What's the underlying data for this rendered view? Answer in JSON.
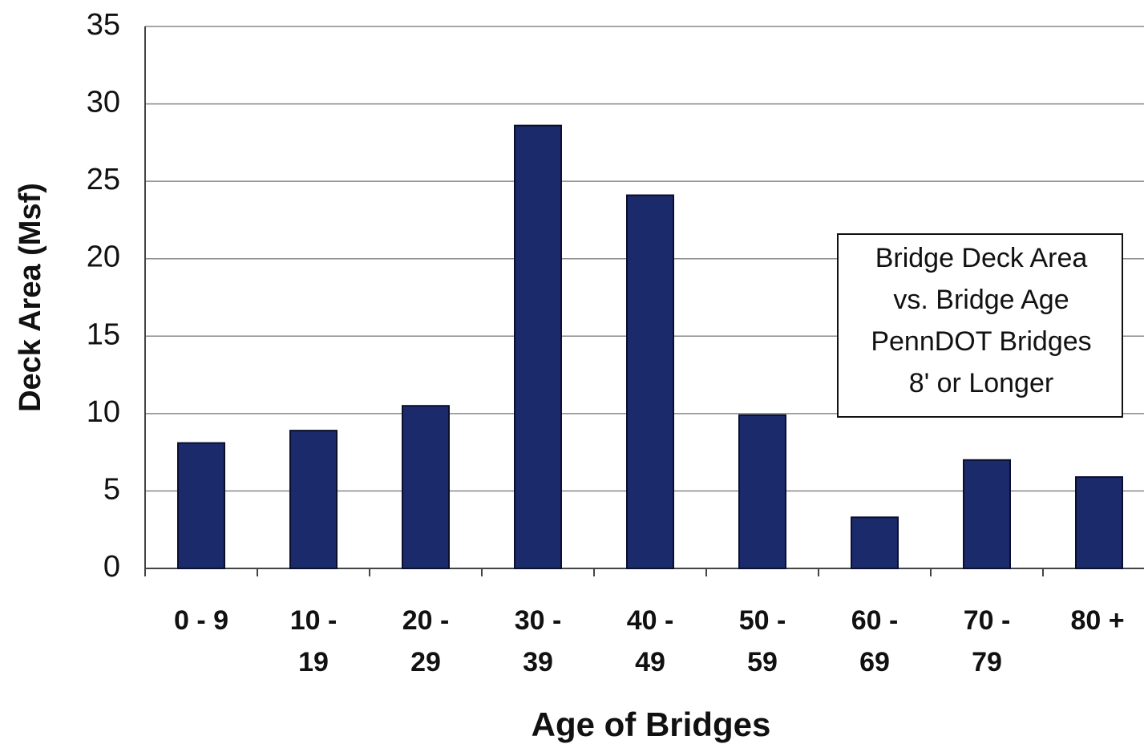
{
  "chart_data": {
    "type": "bar",
    "categories": [
      "0 - 9",
      "10 - 19",
      "20 - 29",
      "30 - 39",
      "40 - 49",
      "50 - 59",
      "60 - 69",
      "70 - 79",
      "80 +"
    ],
    "values": [
      8.1,
      8.9,
      10.5,
      28.6,
      24.1,
      9.9,
      3.3,
      7.0,
      5.9
    ],
    "color": "#1b2a6b",
    "x_label": "Age of Bridges",
    "y_label": "Deck Area (Msf)",
    "annotation": [
      "Bridge Deck Area",
      "vs. Bridge Age",
      "PennDOT Bridges",
      "8' or Longer"
    ],
    "ylim": [
      0,
      35
    ],
    "yticks": [
      0,
      5,
      10,
      15,
      20,
      25,
      30,
      35
    ],
    "grid": true
  }
}
